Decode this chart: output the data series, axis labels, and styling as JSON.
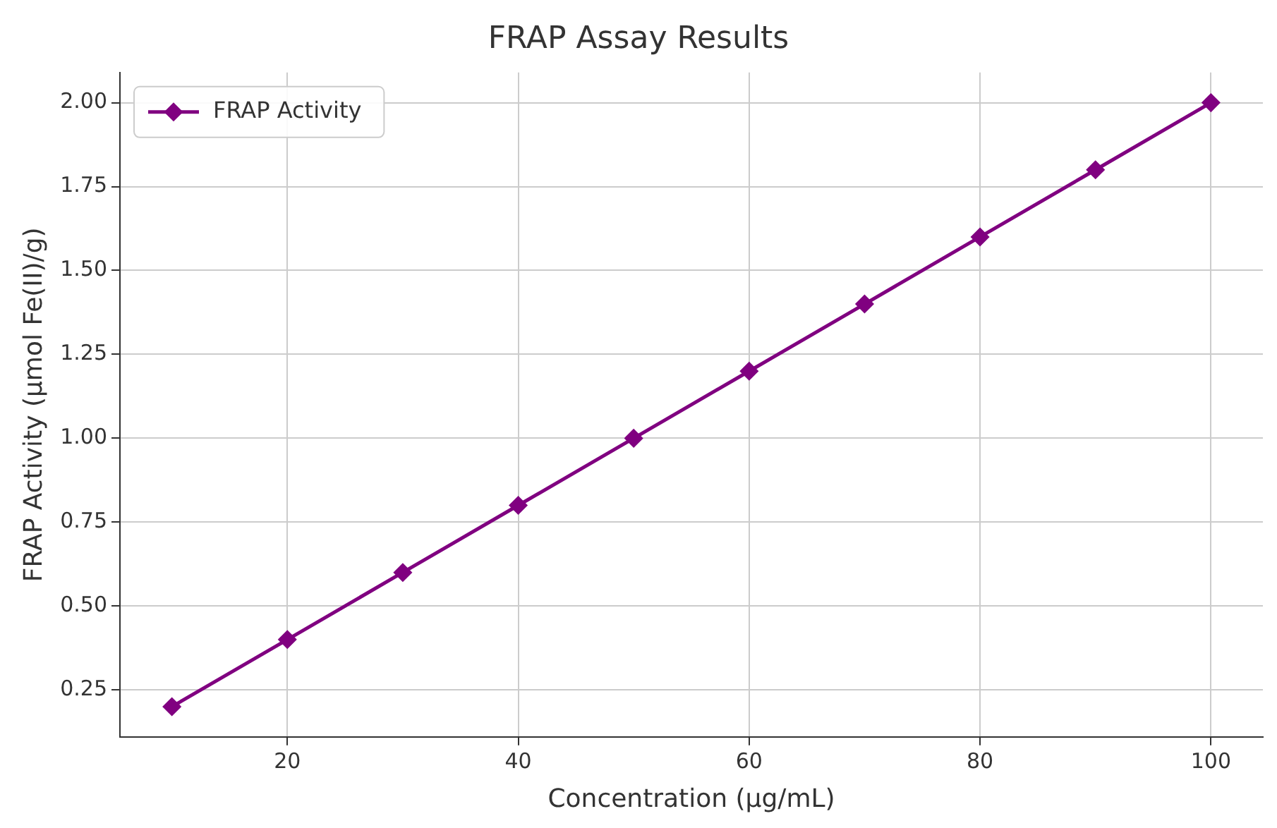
{
  "chart_data": {
    "type": "line",
    "title": "FRAP Assay Results",
    "xlabel": "Concentration (µg/mL)",
    "ylabel": "FRAP Activity (µmol Fe(II)/g)",
    "x": [
      10,
      20,
      30,
      40,
      50,
      60,
      70,
      80,
      90,
      100
    ],
    "series": [
      {
        "name": "FRAP Activity",
        "color": "#800080",
        "values": [
          0.2,
          0.4,
          0.6,
          0.8,
          1.0,
          1.2,
          1.4,
          1.6,
          1.8,
          2.0
        ]
      }
    ],
    "xlim": [
      5.5,
      104.5
    ],
    "xticks": [
      20,
      40,
      60,
      80,
      100
    ],
    "ylim": [
      0.11,
      2.09
    ],
    "yticks": [
      {
        "value": 0.25,
        "label": "0.25"
      },
      {
        "value": 0.5,
        "label": "0.50"
      },
      {
        "value": 0.75,
        "label": "0.75"
      },
      {
        "value": 1,
        "label": "1.00"
      },
      {
        "value": 1.25,
        "label": "1.25"
      },
      {
        "value": 1.5,
        "label": "1.50"
      },
      {
        "value": 1.75,
        "label": "1.75"
      },
      {
        "value": 2,
        "label": "2.00"
      }
    ],
    "grid": true,
    "legend": "top left",
    "marker": "diamond",
    "line_style": "solid"
  }
}
